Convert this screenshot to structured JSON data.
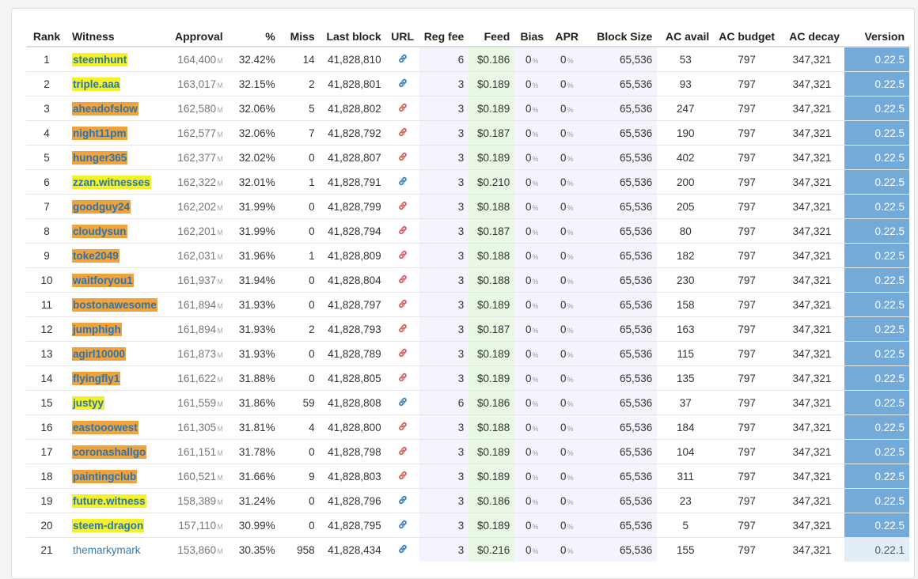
{
  "headers": {
    "rank": "Rank",
    "witness": "Witness",
    "approval": "Approval",
    "percent": "%",
    "miss": "Miss",
    "last_block": "Last block",
    "url": "URL",
    "reg_fee": "Reg fee",
    "feed": "Feed",
    "bias": "Bias",
    "apr": "APR",
    "block_size": "Block Size",
    "ac_avail": "AC avail",
    "ac_budget": "AC budget",
    "ac_decay": "AC decay",
    "version": "Version"
  },
  "units": {
    "approval": "M",
    "percent": "%"
  },
  "colors": {
    "highlight_yellow": "#f4f126",
    "highlight_orange": "#f0a33c",
    "link_blue": "#337ab7",
    "link_red": "#d9534f",
    "feed_bg": "#e9f8e4",
    "version_bg": "#74aad7"
  },
  "rows": [
    {
      "rank": "1",
      "witness": "steemhunt",
      "hl": "yel",
      "approval": "164,400",
      "pct": "32.42%",
      "miss": "14",
      "last_block": "41,828,810",
      "url_icon": "blue",
      "reg_fee": "6",
      "feed": "$0.186",
      "bias": "0",
      "apr": "0",
      "block_size": "65,536",
      "ac_avail": "53",
      "ac_budget": "797",
      "ac_decay": "347,321",
      "version": "0.22.5"
    },
    {
      "rank": "2",
      "witness": "triple.aaa",
      "hl": "yel",
      "approval": "163,017",
      "pct": "32.15%",
      "miss": "2",
      "last_block": "41,828,801",
      "url_icon": "blue",
      "reg_fee": "3",
      "feed": "$0.189",
      "bias": "0",
      "apr": "0",
      "block_size": "65,536",
      "ac_avail": "93",
      "ac_budget": "797",
      "ac_decay": "347,321",
      "version": "0.22.5"
    },
    {
      "rank": "3",
      "witness": "aheadofslow",
      "hl": "org",
      "approval": "162,580",
      "pct": "32.06%",
      "miss": "5",
      "last_block": "41,828,802",
      "url_icon": "red",
      "reg_fee": "3",
      "feed": "$0.189",
      "bias": "0",
      "apr": "0",
      "block_size": "65,536",
      "ac_avail": "247",
      "ac_budget": "797",
      "ac_decay": "347,321",
      "version": "0.22.5"
    },
    {
      "rank": "4",
      "witness": "night11pm",
      "hl": "org",
      "approval": "162,577",
      "pct": "32.06%",
      "miss": "7",
      "last_block": "41,828,792",
      "url_icon": "red",
      "reg_fee": "3",
      "feed": "$0.187",
      "bias": "0",
      "apr": "0",
      "block_size": "65,536",
      "ac_avail": "190",
      "ac_budget": "797",
      "ac_decay": "347,321",
      "version": "0.22.5"
    },
    {
      "rank": "5",
      "witness": "hunger365",
      "hl": "org",
      "approval": "162,377",
      "pct": "32.02%",
      "miss": "0",
      "last_block": "41,828,807",
      "url_icon": "red",
      "reg_fee": "3",
      "feed": "$0.189",
      "bias": "0",
      "apr": "0",
      "block_size": "65,536",
      "ac_avail": "402",
      "ac_budget": "797",
      "ac_decay": "347,321",
      "version": "0.22.5"
    },
    {
      "rank": "6",
      "witness": "zzan.witnesses",
      "hl": "yel",
      "approval": "162,322",
      "pct": "32.01%",
      "miss": "1",
      "last_block": "41,828,791",
      "url_icon": "blue",
      "reg_fee": "3",
      "feed": "$0.210",
      "bias": "0",
      "apr": "0",
      "block_size": "65,536",
      "ac_avail": "200",
      "ac_budget": "797",
      "ac_decay": "347,321",
      "version": "0.22.5"
    },
    {
      "rank": "7",
      "witness": "goodguy24",
      "hl": "org",
      "approval": "162,202",
      "pct": "31.99%",
      "miss": "0",
      "last_block": "41,828,799",
      "url_icon": "red",
      "reg_fee": "3",
      "feed": "$0.188",
      "bias": "0",
      "apr": "0",
      "block_size": "65,536",
      "ac_avail": "205",
      "ac_budget": "797",
      "ac_decay": "347,321",
      "version": "0.22.5"
    },
    {
      "rank": "8",
      "witness": "cloudysun",
      "hl": "org",
      "approval": "162,201",
      "pct": "31.99%",
      "miss": "0",
      "last_block": "41,828,794",
      "url_icon": "red",
      "reg_fee": "3",
      "feed": "$0.187",
      "bias": "0",
      "apr": "0",
      "block_size": "65,536",
      "ac_avail": "80",
      "ac_budget": "797",
      "ac_decay": "347,321",
      "version": "0.22.5"
    },
    {
      "rank": "9",
      "witness": "toke2049",
      "hl": "org",
      "approval": "162,031",
      "pct": "31.96%",
      "miss": "1",
      "last_block": "41,828,809",
      "url_icon": "red",
      "reg_fee": "3",
      "feed": "$0.188",
      "bias": "0",
      "apr": "0",
      "block_size": "65,536",
      "ac_avail": "182",
      "ac_budget": "797",
      "ac_decay": "347,321",
      "version": "0.22.5"
    },
    {
      "rank": "10",
      "witness": "waitforyou1",
      "hl": "org",
      "approval": "161,937",
      "pct": "31.94%",
      "miss": "0",
      "last_block": "41,828,804",
      "url_icon": "red",
      "reg_fee": "3",
      "feed": "$0.188",
      "bias": "0",
      "apr": "0",
      "block_size": "65,536",
      "ac_avail": "230",
      "ac_budget": "797",
      "ac_decay": "347,321",
      "version": "0.22.5"
    },
    {
      "rank": "11",
      "witness": "bostonawesome",
      "hl": "org",
      "approval": "161,894",
      "pct": "31.93%",
      "miss": "0",
      "last_block": "41,828,797",
      "url_icon": "red",
      "reg_fee": "3",
      "feed": "$0.189",
      "bias": "0",
      "apr": "0",
      "block_size": "65,536",
      "ac_avail": "158",
      "ac_budget": "797",
      "ac_decay": "347,321",
      "version": "0.22.5"
    },
    {
      "rank": "12",
      "witness": "jumphigh",
      "hl": "org",
      "approval": "161,894",
      "pct": "31.93%",
      "miss": "2",
      "last_block": "41,828,793",
      "url_icon": "red",
      "reg_fee": "3",
      "feed": "$0.187",
      "bias": "0",
      "apr": "0",
      "block_size": "65,536",
      "ac_avail": "163",
      "ac_budget": "797",
      "ac_decay": "347,321",
      "version": "0.22.5"
    },
    {
      "rank": "13",
      "witness": "agirl10000",
      "hl": "org",
      "approval": "161,873",
      "pct": "31.93%",
      "miss": "0",
      "last_block": "41,828,789",
      "url_icon": "red",
      "reg_fee": "3",
      "feed": "$0.189",
      "bias": "0",
      "apr": "0",
      "block_size": "65,536",
      "ac_avail": "115",
      "ac_budget": "797",
      "ac_decay": "347,321",
      "version": "0.22.5"
    },
    {
      "rank": "14",
      "witness": "flyingfly1",
      "hl": "org",
      "approval": "161,622",
      "pct": "31.88%",
      "miss": "0",
      "last_block": "41,828,805",
      "url_icon": "red",
      "reg_fee": "3",
      "feed": "$0.189",
      "bias": "0",
      "apr": "0",
      "block_size": "65,536",
      "ac_avail": "135",
      "ac_budget": "797",
      "ac_decay": "347,321",
      "version": "0.22.5"
    },
    {
      "rank": "15",
      "witness": "justyy",
      "hl": "yel",
      "approval": "161,559",
      "pct": "31.86%",
      "miss": "59",
      "last_block": "41,828,808",
      "url_icon": "blue",
      "reg_fee": "6",
      "feed": "$0.186",
      "bias": "0",
      "apr": "0",
      "block_size": "65,536",
      "ac_avail": "37",
      "ac_budget": "797",
      "ac_decay": "347,321",
      "version": "0.22.5"
    },
    {
      "rank": "16",
      "witness": "eastooowest",
      "hl": "org",
      "approval": "161,305",
      "pct": "31.81%",
      "miss": "4",
      "last_block": "41,828,800",
      "url_icon": "red",
      "reg_fee": "3",
      "feed": "$0.188",
      "bias": "0",
      "apr": "0",
      "block_size": "65,536",
      "ac_avail": "184",
      "ac_budget": "797",
      "ac_decay": "347,321",
      "version": "0.22.5"
    },
    {
      "rank": "17",
      "witness": "coronashallgo",
      "hl": "org",
      "approval": "161,151",
      "pct": "31.78%",
      "miss": "0",
      "last_block": "41,828,798",
      "url_icon": "red",
      "reg_fee": "3",
      "feed": "$0.189",
      "bias": "0",
      "apr": "0",
      "block_size": "65,536",
      "ac_avail": "104",
      "ac_budget": "797",
      "ac_decay": "347,321",
      "version": "0.22.5"
    },
    {
      "rank": "18",
      "witness": "paintingclub",
      "hl": "org",
      "approval": "160,521",
      "pct": "31.66%",
      "miss": "9",
      "last_block": "41,828,803",
      "url_icon": "red",
      "reg_fee": "3",
      "feed": "$0.189",
      "bias": "0",
      "apr": "0",
      "block_size": "65,536",
      "ac_avail": "311",
      "ac_budget": "797",
      "ac_decay": "347,321",
      "version": "0.22.5"
    },
    {
      "rank": "19",
      "witness": "future.witness",
      "hl": "yel",
      "approval": "158,389",
      "pct": "31.24%",
      "miss": "0",
      "last_block": "41,828,796",
      "url_icon": "blue",
      "reg_fee": "3",
      "feed": "$0.186",
      "bias": "0",
      "apr": "0",
      "block_size": "65,536",
      "ac_avail": "23",
      "ac_budget": "797",
      "ac_decay": "347,321",
      "version": "0.22.5"
    },
    {
      "rank": "20",
      "witness": "steem-dragon",
      "hl": "yel",
      "approval": "157,110",
      "pct": "30.99%",
      "miss": "0",
      "last_block": "41,828,795",
      "url_icon": "blue",
      "reg_fee": "3",
      "feed": "$0.189",
      "bias": "0",
      "apr": "0",
      "block_size": "65,536",
      "ac_avail": "5",
      "ac_budget": "797",
      "ac_decay": "347,321",
      "version": "0.22.5"
    },
    {
      "rank": "21",
      "witness": "themarkymark",
      "hl": "plain",
      "approval": "153,860",
      "pct": "30.35%",
      "miss": "958",
      "last_block": "41,828,434",
      "url_icon": "blue",
      "reg_fee": "3",
      "feed": "$0.216",
      "bias": "0",
      "apr": "0",
      "block_size": "65,536",
      "ac_avail": "155",
      "ac_budget": "797",
      "ac_decay": "347,321",
      "version": "0.22.1"
    }
  ]
}
